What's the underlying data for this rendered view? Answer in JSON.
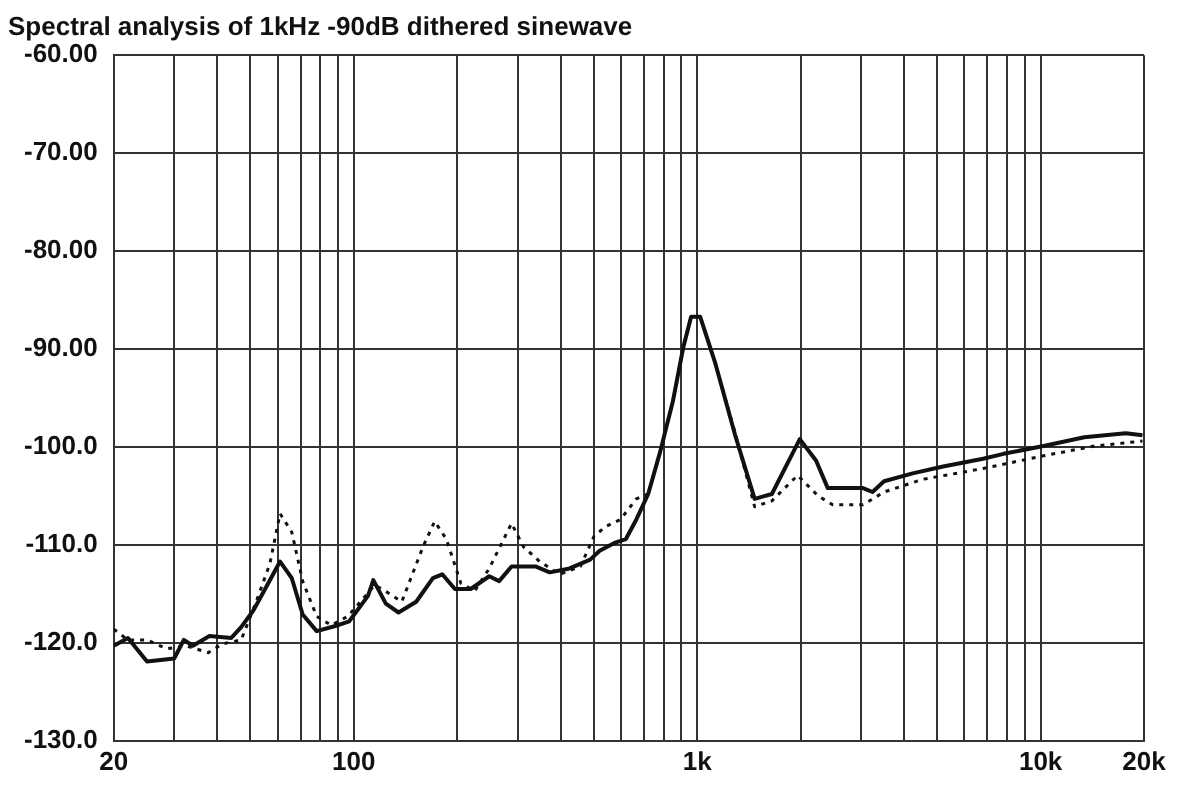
{
  "chart_data": {
    "type": "line",
    "title": "Spectral analysis of 1kHz -90dB dithered sinewave",
    "log": "x",
    "grid": true,
    "legend": false,
    "marker": "none",
    "xlim": [
      20,
      20000
    ],
    "xticks": [
      20,
      {
        "value": 30,
        "label": null
      },
      {
        "value": 40,
        "label": null
      },
      {
        "value": 50,
        "label": null
      },
      {
        "value": 60,
        "label": null
      },
      {
        "value": 70,
        "label": null
      },
      {
        "value": 80,
        "label": null
      },
      {
        "value": 90,
        "label": null
      },
      100,
      {
        "value": 200,
        "label": null
      },
      {
        "value": 300,
        "label": null
      },
      {
        "value": 400,
        "label": null
      },
      {
        "value": 500,
        "label": null
      },
      {
        "value": 600,
        "label": null
      },
      {
        "value": 700,
        "label": null
      },
      {
        "value": 800,
        "label": null
      },
      {
        "value": 900,
        "label": null
      },
      {
        "value": 1000,
        "label": "1k"
      },
      {
        "value": 2000,
        "label": null
      },
      {
        "value": 3000,
        "label": null
      },
      {
        "value": 4000,
        "label": null
      },
      {
        "value": 5000,
        "label": null
      },
      {
        "value": 6000,
        "label": null
      },
      {
        "value": 7000,
        "label": null
      },
      {
        "value": 8000,
        "label": null
      },
      {
        "value": 9000,
        "label": null
      },
      {
        "value": 10000,
        "label": "10k"
      },
      {
        "value": 20000,
        "label": "20k"
      }
    ],
    "ylim": [
      -130,
      -60
    ],
    "yticks": [
      {
        "value": -130,
        "label": "-130.0"
      },
      {
        "value": -120,
        "label": "-120.0"
      },
      {
        "value": -110,
        "label": "-110.0"
      },
      {
        "value": -100,
        "label": "-100.0"
      },
      {
        "value": -90,
        "label": "-90.00"
      },
      {
        "value": -80,
        "label": "-80.00"
      },
      {
        "value": -70,
        "label": "-70.00"
      },
      {
        "value": -60,
        "label": "-60.00"
      }
    ],
    "series": [
      {
        "color": "#111111",
        "line_style": "solid",
        "x": [
          20,
          22,
          25,
          30,
          32,
          34,
          38,
          44,
          47,
          51,
          56,
          61,
          66,
          71,
          78,
          90,
          97,
          110,
          114,
          124,
          135,
          152,
          170,
          181,
          197,
          219,
          248,
          265,
          288,
          338,
          372,
          425,
          488,
          520,
          574,
          620,
          665,
          720,
          780,
          850,
          910,
          960,
          1020,
          1130,
          1290,
          1470,
          1650,
          1990,
          2220,
          2400,
          3040,
          3240,
          3500,
          4240,
          5200,
          6800,
          7800,
          10200,
          13400,
          17700,
          19800
        ],
        "values": [
          -120.3,
          -119.5,
          -121.9,
          -121.6,
          -119.7,
          -120.3,
          -119.3,
          -119.5,
          -118.4,
          -116.7,
          -114.1,
          -111.7,
          -113.4,
          -117.1,
          -118.8,
          -118.2,
          -117.8,
          -115.2,
          -113.6,
          -116,
          -116.9,
          -115.8,
          -113.4,
          -113,
          -114.5,
          -114.5,
          -113.2,
          -113.7,
          -112.2,
          -112.2,
          -112.8,
          -112.4,
          -111.5,
          -110.6,
          -109.8,
          -109.4,
          -107.4,
          -104.8,
          -100.5,
          -95.3,
          -89.9,
          -86.7,
          -86.7,
          -91.5,
          -98.8,
          -105.3,
          -104.8,
          -99.2,
          -101.4,
          -104.2,
          -104.2,
          -104.6,
          -103.5,
          -102.7,
          -102,
          -101.2,
          -100.7,
          -99.9,
          -99,
          -98.6,
          -98.8
        ]
      },
      {
        "color": "#111111",
        "line_style": "dotted",
        "x": [
          20,
          22,
          25,
          28.5,
          32.5,
          37.7,
          41.5,
          47,
          52,
          57,
          61,
          66,
          71,
          78,
          86,
          96,
          107,
          115,
          126,
          138,
          159,
          172,
          186,
          205,
          225,
          248,
          288,
          312,
          348,
          398,
          457,
          501,
          543,
          598,
          665,
          720,
          780,
          850,
          910,
          960,
          1020,
          1130,
          1290,
          1470,
          1650,
          1960,
          2250,
          2480,
          3040,
          3500,
          4540,
          6800,
          10200,
          14400,
          19800
        ],
        "values": [
          -118.6,
          -119.7,
          -119.7,
          -120.6,
          -120.3,
          -121,
          -120.1,
          -119.7,
          -115.8,
          -111.9,
          -106.8,
          -108.7,
          -113.7,
          -117.3,
          -118.2,
          -117.3,
          -115.4,
          -114.1,
          -114.9,
          -115.8,
          -110.2,
          -107.6,
          -109.4,
          -113.9,
          -114.7,
          -112.4,
          -107.8,
          -110.2,
          -111.7,
          -113,
          -112.2,
          -109.1,
          -108.1,
          -107.4,
          -105.3,
          -104.8,
          -100.5,
          -95.3,
          -89.9,
          -86.7,
          -86.7,
          -91.5,
          -98.6,
          -106.1,
          -105.5,
          -102.9,
          -105,
          -105.9,
          -105.9,
          -104.6,
          -103.3,
          -102.2,
          -100.9,
          -99.9,
          -99.4
        ]
      }
    ]
  }
}
